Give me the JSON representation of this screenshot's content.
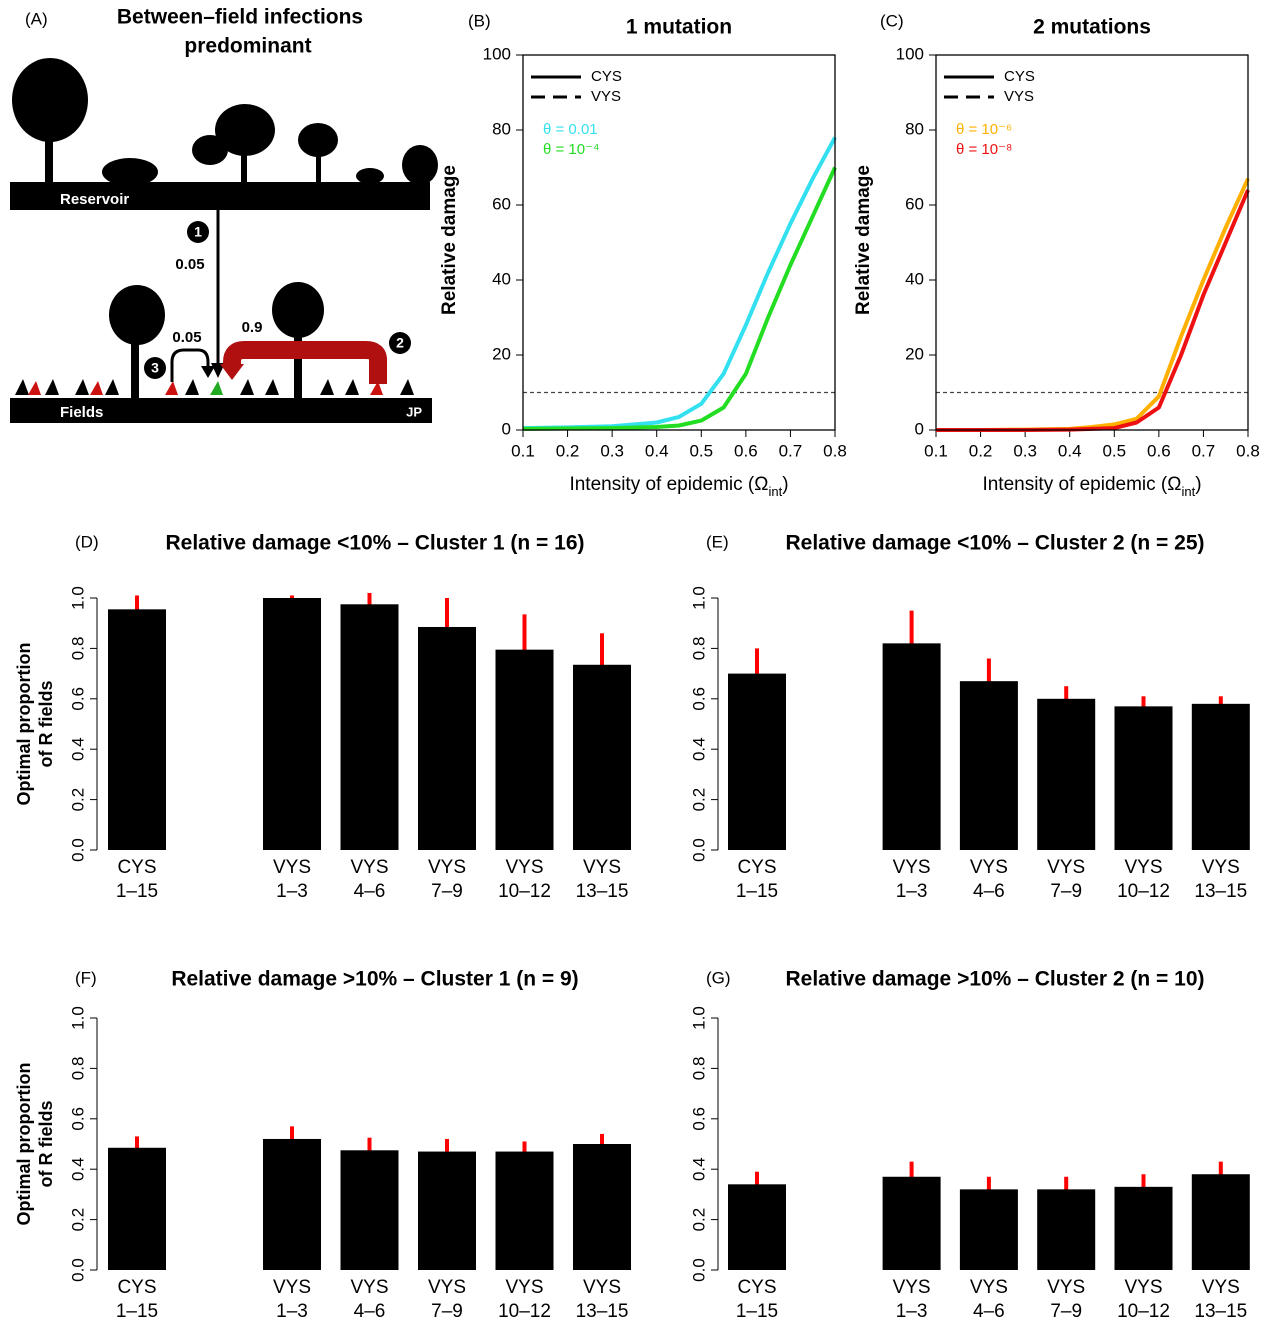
{
  "panel_a": {
    "label": "(A)",
    "title": [
      "Between–field infections",
      "predominant"
    ],
    "reservoir": "Reservoir",
    "fields": "Fields",
    "credit": "JP",
    "rates": [
      0.05,
      0.05,
      0.9
    ],
    "steps": [
      1,
      2,
      3
    ]
  },
  "chart_data": [
    {
      "type": "line",
      "label": "(B)",
      "title": "1 mutation",
      "y_label": "Relative damage",
      "x_label": [
        "Intensity of epidemic (Ω",
        "int",
        ")"
      ],
      "x": [
        0.1,
        0.2,
        0.3,
        0.4,
        0.45,
        0.5,
        0.55,
        0.6,
        0.65,
        0.7,
        0.75,
        0.8
      ],
      "series": [
        {
          "name": "θ = 0.01",
          "color": "#33e0f0",
          "values": [
            0.5,
            0.7,
            1,
            2,
            3.5,
            7,
            15,
            28,
            42,
            55,
            67,
            78
          ]
        },
        {
          "name": "θ = 10⁻⁴",
          "color": "#22dd22",
          "values": [
            0.3,
            0.4,
            0.5,
            0.8,
            1.2,
            2.5,
            6,
            15,
            30,
            44,
            57,
            70
          ]
        }
      ],
      "line_styles": [
        {
          "name": "CYS",
          "dash": "solid"
        },
        {
          "name": "VYS",
          "dash": "dashed"
        }
      ],
      "threshold": 10,
      "xlim": [
        0.1,
        0.8
      ],
      "ylim": [
        0,
        100
      ],
      "xticks": [
        0.1,
        0.2,
        0.3,
        0.4,
        0.5,
        0.6,
        0.7,
        0.8
      ],
      "yticks": [
        0,
        20,
        40,
        60,
        80,
        100
      ]
    },
    {
      "type": "line",
      "label": "(C)",
      "title": "2 mutations",
      "y_label": "Relative damage",
      "x_label": [
        "Intensity of epidemic (Ω",
        "int",
        ")"
      ],
      "x": [
        0.1,
        0.2,
        0.3,
        0.4,
        0.45,
        0.5,
        0.55,
        0.6,
        0.65,
        0.7,
        0.75,
        0.8
      ],
      "series": [
        {
          "name": "θ = 10⁻⁶",
          "color": "#ffb000",
          "values": [
            0,
            0,
            0.1,
            0.3,
            0.8,
            1.5,
            3,
            9,
            25,
            40,
            54,
            67
          ]
        },
        {
          "name": "θ = 10⁻⁸",
          "color": "#ee1111",
          "values": [
            0,
            0,
            0,
            0.1,
            0.3,
            0.5,
            2,
            6,
            20,
            36,
            50,
            64
          ]
        }
      ],
      "line_styles": [
        {
          "name": "CYS",
          "dash": "solid"
        },
        {
          "name": "VYS",
          "dash": "dashed"
        }
      ],
      "threshold": 10,
      "xlim": [
        0.1,
        0.8
      ],
      "ylim": [
        0,
        100
      ],
      "xticks": [
        0.1,
        0.2,
        0.3,
        0.4,
        0.5,
        0.6,
        0.7,
        0.8
      ],
      "yticks": [
        0,
        20,
        40,
        60,
        80,
        100
      ]
    },
    {
      "type": "bar",
      "label": "(D)",
      "title": "Relative damage <10% – Cluster 1 (n = 16)",
      "y_label": [
        "Optimal proportion",
        "of R fields"
      ],
      "categories": [
        [
          "CYS",
          "1–15"
        ],
        [
          "VYS",
          "1–3"
        ],
        [
          "VYS",
          "4–6"
        ],
        [
          "VYS",
          "7–9"
        ],
        [
          "VYS",
          "10–12"
        ],
        [
          "VYS",
          "13–15"
        ]
      ],
      "values": [
        0.955,
        1.0,
        0.975,
        0.885,
        0.795,
        0.735
      ],
      "errors": [
        0.055,
        0.01,
        0.045,
        0.115,
        0.14,
        0.125
      ],
      "color": "#000000",
      "error_color": "#ff0000",
      "ylim": [
        0,
        1
      ],
      "yticks": [
        {
          "value": 0,
          "label": "0.0"
        },
        0.2,
        0.4,
        0.6,
        0.8,
        {
          "value": 1,
          "label": "1.0"
        }
      ]
    },
    {
      "type": "bar",
      "label": "(E)",
      "title": "Relative damage <10% – Cluster 2 (n = 25)",
      "categories": [
        [
          "CYS",
          "1–15"
        ],
        [
          "VYS",
          "1–3"
        ],
        [
          "VYS",
          "4–6"
        ],
        [
          "VYS",
          "7–9"
        ],
        [
          "VYS",
          "10–12"
        ],
        [
          "VYS",
          "13–15"
        ]
      ],
      "values": [
        0.7,
        0.82,
        0.67,
        0.6,
        0.57,
        0.58
      ],
      "errors": [
        0.1,
        0.13,
        0.09,
        0.05,
        0.04,
        0.03
      ],
      "color": "#000000",
      "error_color": "#ff0000",
      "ylim": [
        0,
        1
      ],
      "yticks": [
        {
          "value": 0,
          "label": "0.0"
        },
        0.2,
        0.4,
        0.6,
        0.8,
        {
          "value": 1,
          "label": "1.0"
        }
      ]
    },
    {
      "type": "bar",
      "label": "(F)",
      "title": "Relative damage >10% – Cluster 1 (n = 9)",
      "y_label": [
        "Optimal proportion",
        "of R fields"
      ],
      "categories": [
        [
          "CYS",
          "1–15"
        ],
        [
          "VYS",
          "1–3"
        ],
        [
          "VYS",
          "4–6"
        ],
        [
          "VYS",
          "7–9"
        ],
        [
          "VYS",
          "10–12"
        ],
        [
          "VYS",
          "13–15"
        ]
      ],
      "values": [
        0.485,
        0.52,
        0.475,
        0.47,
        0.47,
        0.5
      ],
      "errors": [
        0.045,
        0.05,
        0.05,
        0.05,
        0.04,
        0.04
      ],
      "color": "#000000",
      "error_color": "#ff0000",
      "ylim": [
        0,
        1
      ],
      "yticks": [
        {
          "value": 0,
          "label": "0.0"
        },
        0.2,
        0.4,
        0.6,
        0.8,
        {
          "value": 1,
          "label": "1.0"
        }
      ]
    },
    {
      "type": "bar",
      "label": "(G)",
      "title": "Relative damage >10% – Cluster 2 (n = 10)",
      "categories": [
        [
          "CYS",
          "1–15"
        ],
        [
          "VYS",
          "1–3"
        ],
        [
          "VYS",
          "4–6"
        ],
        [
          "VYS",
          "7–9"
        ],
        [
          "VYS",
          "10–12"
        ],
        [
          "VYS",
          "13–15"
        ]
      ],
      "values": [
        0.34,
        0.37,
        0.32,
        0.32,
        0.33,
        0.38
      ],
      "errors": [
        0.05,
        0.06,
        0.05,
        0.05,
        0.05,
        0.05
      ],
      "color": "#000000",
      "error_color": "#ff0000",
      "ylim": [
        0,
        1
      ],
      "yticks": [
        {
          "value": 0,
          "label": "0.0"
        },
        0.2,
        0.4,
        0.6,
        0.8,
        {
          "value": 1,
          "label": "1.0"
        }
      ]
    }
  ]
}
